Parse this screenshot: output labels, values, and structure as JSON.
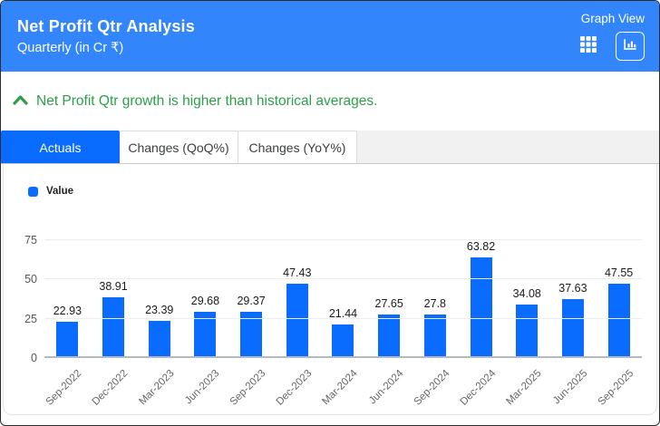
{
  "header": {
    "title": "Net Profit Qtr Analysis",
    "subtitle": "Quarterly (in Cr ₹)",
    "view_label": "Graph View",
    "background_color": "#3385fc",
    "views": [
      {
        "name": "table-view",
        "icon": "table-grid-icon",
        "selected": false
      },
      {
        "name": "graph-view",
        "icon": "bar-chart-icon",
        "selected": true
      }
    ]
  },
  "insight": {
    "text": "Net Profit Qtr growth is higher than historical averages.",
    "icon": "chevron-up-icon",
    "color": "#2e9e49"
  },
  "tabs": [
    {
      "label": "Actuals",
      "active": true
    },
    {
      "label": "Changes (QoQ%)",
      "active": false
    },
    {
      "label": "Changes (YoY%)",
      "active": false
    }
  ],
  "legend": {
    "label": "Value",
    "color": "#0a6cff"
  },
  "chart_data": {
    "type": "bar",
    "categories": [
      "Sep-2022",
      "Dec-2022",
      "Mar-2023",
      "Jun-2023",
      "Sep-2023",
      "Dec-2023",
      "Mar-2024",
      "Jun-2024",
      "Sep-2024",
      "Dec-2024",
      "Mar-2025",
      "Jun-2025",
      "Sep-2025"
    ],
    "values": [
      22.93,
      38.91,
      23.39,
      29.68,
      29.37,
      47.43,
      21.44,
      27.65,
      27.8,
      63.82,
      34.08,
      37.63,
      47.55
    ],
    "value_labels": [
      "22.93",
      "38.91",
      "23.39",
      "29.68",
      "29.37",
      "47.43",
      "21.44",
      "27.65",
      "27.8",
      "63.82",
      "34.08",
      "37.63",
      "47.55"
    ],
    "series_name": "Value",
    "ylim": [
      0,
      75
    ],
    "yticks": [
      0,
      25,
      50,
      75
    ],
    "bar_color": "#0a6cff",
    "grid": true,
    "legend_position": "top-left",
    "xlabel_rotation": -45
  }
}
